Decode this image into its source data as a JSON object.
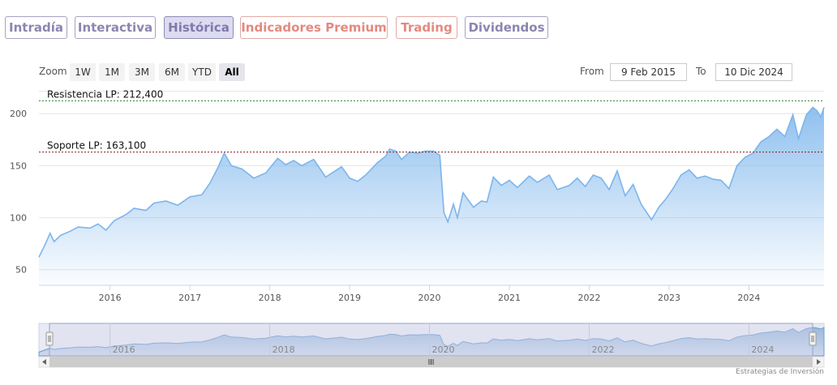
{
  "tabs": [
    {
      "label": "Intradía"
    },
    {
      "label": "Interactiva"
    },
    {
      "label": "Histórica"
    },
    {
      "label": "Indicadores Premium"
    },
    {
      "label": "Trading"
    },
    {
      "label": "Dividendos"
    }
  ],
  "zoom": {
    "label": "Zoom",
    "buttons": [
      "1W",
      "1M",
      "3M",
      "6M",
      "YTD",
      "All"
    ],
    "selected": "All"
  },
  "range": {
    "from_label": "From",
    "from_value": "9 Feb 2015",
    "to_label": "To",
    "to_value": "10 Dic 2024"
  },
  "credit": "Estrategias de Inversión",
  "colors": {
    "line": "#7cb5ec",
    "resistance": "#2e7d32",
    "support": "#8b1a1a",
    "tab_border": "#a7a2c6",
    "premium": "#e28a80"
  },
  "chart_data": {
    "type": "area",
    "y_ticks": [
      50,
      100,
      150,
      200
    ],
    "x_ticks": [
      "2016",
      "2017",
      "2018",
      "2019",
      "2020",
      "2021",
      "2022",
      "2023",
      "2024"
    ],
    "navigator_ticks": [
      "2016",
      "2018",
      "2020",
      "2022",
      "2024"
    ],
    "ylim": [
      35,
      222
    ],
    "xlim": [
      2015.11,
      2024.94
    ],
    "grid": true,
    "annotations": [
      {
        "label": "Resistencia LP: 212,400",
        "value": 212.4,
        "color": "#2e7d32"
      },
      {
        "label": "Soporte LP: 163,100",
        "value": 163.1,
        "color": "#8b1a1a"
      }
    ],
    "series": [
      {
        "points": [
          [
            2015.11,
            62
          ],
          [
            2015.18,
            73
          ],
          [
            2015.25,
            85
          ],
          [
            2015.3,
            77
          ],
          [
            2015.38,
            83
          ],
          [
            2015.5,
            87
          ],
          [
            2015.6,
            91
          ],
          [
            2015.75,
            90
          ],
          [
            2015.85,
            94
          ],
          [
            2015.95,
            88
          ],
          [
            2016.05,
            97
          ],
          [
            2016.2,
            103
          ],
          [
            2016.3,
            109
          ],
          [
            2016.45,
            107
          ],
          [
            2016.55,
            114
          ],
          [
            2016.7,
            116
          ],
          [
            2016.85,
            112
          ],
          [
            2017.0,
            120
          ],
          [
            2017.15,
            122
          ],
          [
            2017.25,
            133
          ],
          [
            2017.35,
            148
          ],
          [
            2017.43,
            162
          ],
          [
            2017.52,
            150
          ],
          [
            2017.65,
            147
          ],
          [
            2017.8,
            138
          ],
          [
            2017.95,
            143
          ],
          [
            2018.1,
            157
          ],
          [
            2018.2,
            151
          ],
          [
            2018.3,
            155
          ],
          [
            2018.4,
            150
          ],
          [
            2018.55,
            156
          ],
          [
            2018.7,
            139
          ],
          [
            2018.8,
            144
          ],
          [
            2018.9,
            149
          ],
          [
            2019.0,
            138
          ],
          [
            2019.1,
            135
          ],
          [
            2019.2,
            141
          ],
          [
            2019.35,
            153
          ],
          [
            2019.45,
            159
          ],
          [
            2019.5,
            166
          ],
          [
            2019.58,
            164
          ],
          [
            2019.65,
            156
          ],
          [
            2019.75,
            163
          ],
          [
            2019.85,
            162
          ],
          [
            2019.95,
            164
          ],
          [
            2020.05,
            164
          ],
          [
            2020.13,
            160
          ],
          [
            2020.18,
            105
          ],
          [
            2020.23,
            96
          ],
          [
            2020.3,
            113
          ],
          [
            2020.35,
            100
          ],
          [
            2020.42,
            124
          ],
          [
            2020.55,
            110
          ],
          [
            2020.65,
            116
          ],
          [
            2020.72,
            115
          ],
          [
            2020.8,
            139
          ],
          [
            2020.9,
            131
          ],
          [
            2021.0,
            136
          ],
          [
            2021.1,
            129
          ],
          [
            2021.25,
            140
          ],
          [
            2021.35,
            134
          ],
          [
            2021.5,
            141
          ],
          [
            2021.6,
            127
          ],
          [
            2021.75,
            131
          ],
          [
            2021.85,
            138
          ],
          [
            2021.95,
            130
          ],
          [
            2022.05,
            141
          ],
          [
            2022.15,
            138
          ],
          [
            2022.25,
            127
          ],
          [
            2022.35,
            145
          ],
          [
            2022.45,
            121
          ],
          [
            2022.55,
            132
          ],
          [
            2022.65,
            113
          ],
          [
            2022.78,
            98
          ],
          [
            2022.88,
            111
          ],
          [
            2022.95,
            117
          ],
          [
            2023.05,
            128
          ],
          [
            2023.15,
            141
          ],
          [
            2023.25,
            146
          ],
          [
            2023.35,
            138
          ],
          [
            2023.45,
            140
          ],
          [
            2023.55,
            137
          ],
          [
            2023.65,
            136
          ],
          [
            2023.75,
            128
          ],
          [
            2023.85,
            150
          ],
          [
            2023.95,
            158
          ],
          [
            2024.05,
            162
          ],
          [
            2024.15,
            173
          ],
          [
            2024.25,
            178
          ],
          [
            2024.35,
            185
          ],
          [
            2024.45,
            178
          ],
          [
            2024.55,
            199
          ],
          [
            2024.62,
            176
          ],
          [
            2024.72,
            199
          ],
          [
            2024.8,
            206
          ],
          [
            2024.85,
            203
          ],
          [
            2024.9,
            197
          ],
          [
            2024.94,
            206
          ]
        ]
      }
    ]
  }
}
